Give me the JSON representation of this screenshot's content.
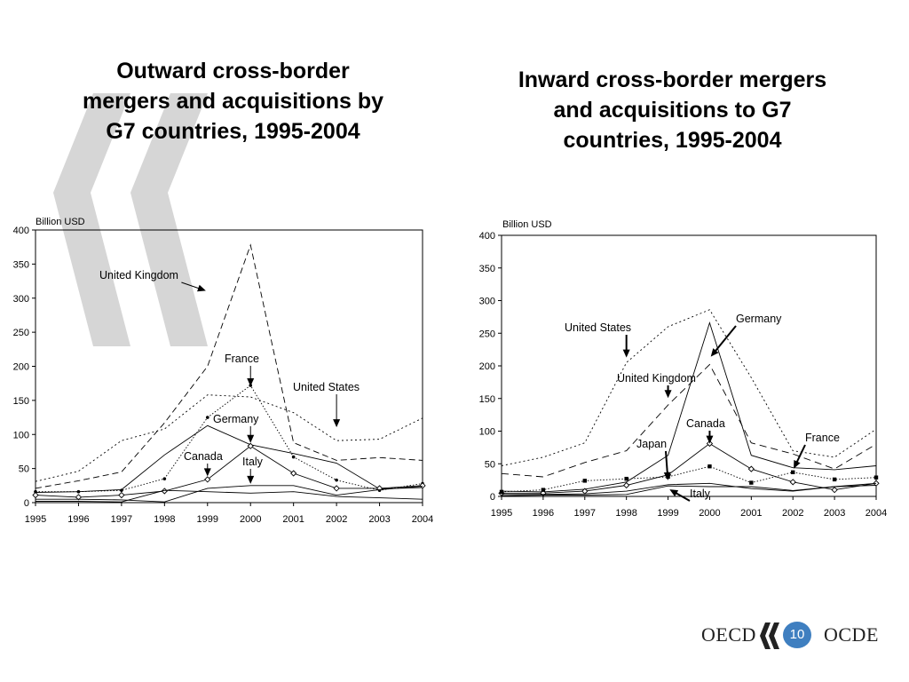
{
  "slide": {
    "page_number": "10",
    "brand_left": "OECD",
    "brand_right": "OCDE",
    "decoration_icon": "quote-chevron-icon",
    "colors": {
      "chevron": "#d4d4d4",
      "page_badge": "#3f7fc0",
      "lines": "#000000"
    }
  },
  "chart_data": [
    {
      "type": "line",
      "title_lines": [
        "Outward cross-border",
        "mergers and acquisitions by",
        "G7 countries, 1995-2004"
      ],
      "ylabel": "Billion USD",
      "xlabel": "",
      "x": [
        "1995",
        "1996",
        "1997",
        "1998",
        "1999",
        "2000",
        "2001",
        "2002",
        "2003",
        "2004"
      ],
      "ylim": [
        0,
        400
      ],
      "yticks": [
        0,
        50,
        100,
        150,
        200,
        250,
        300,
        350,
        400
      ],
      "legend": "none",
      "grid": false,
      "series": [
        {
          "name": "United Kingdom",
          "dash": "7,4",
          "marker": "none",
          "values": [
            21,
            32,
            45,
            117,
            200,
            378,
            88,
            62,
            66,
            62
          ]
        },
        {
          "name": "United States",
          "dash": "2,3",
          "marker": "none",
          "values": [
            31,
            46,
            91,
            108,
            158,
            155,
            132,
            91,
            93,
            124
          ]
        },
        {
          "name": "France",
          "dash": "1.5,2",
          "marker": "dot",
          "values": [
            16,
            16,
            18,
            35,
            125,
            172,
            67,
            33,
            18,
            28
          ]
        },
        {
          "name": "Germany",
          "dash": "",
          "marker": "none",
          "values": [
            15,
            16,
            19,
            70,
            113,
            85,
            72,
            58,
            20,
            22
          ]
        },
        {
          "name": "Canada",
          "dash": "",
          "marker": "diamond",
          "values": [
            11,
            8,
            11,
            17,
            34,
            83,
            43,
            21,
            21,
            25
          ]
        },
        {
          "name": "Italy",
          "dash": "",
          "marker": "none",
          "values": [
            5,
            5,
            4,
            1,
            21,
            25,
            25,
            11,
            19,
            24
          ]
        },
        {
          "name": "",
          "dash": "",
          "marker": "none",
          "values": [
            2,
            2,
            1,
            18,
            16,
            14,
            16,
            9,
            7,
            5
          ]
        }
      ],
      "annotations": [
        {
          "text": "United Kingdom",
          "target": {
            "series": "United Kingdom",
            "x": "1999",
            "y": 310
          }
        },
        {
          "text": "France",
          "target": {
            "series": "France",
            "x": "2000",
            "y": 168
          }
        },
        {
          "text": "United States",
          "target": {
            "series": "United States",
            "x": "2002",
            "y": 108
          }
        },
        {
          "text": "Germany",
          "target": {
            "series": "Germany",
            "x": "2000",
            "y": 85
          }
        },
        {
          "text": "Canada",
          "target": {
            "series": "Canada",
            "x": "1999",
            "y": 36
          }
        },
        {
          "text": "Italy",
          "target": {
            "series": "Italy",
            "x": "2000",
            "y": 25
          }
        }
      ]
    },
    {
      "type": "line",
      "title_lines": [
        "Inward cross-border mergers",
        "and acquisitions to G7",
        "countries, 1995-2004"
      ],
      "ylabel": "Billion USD",
      "xlabel": "",
      "x": [
        "1995",
        "1996",
        "1997",
        "1998",
        "1999",
        "2000",
        "2001",
        "2002",
        "2003",
        "2004"
      ],
      "ylim": [
        0,
        400
      ],
      "yticks": [
        0,
        50,
        100,
        150,
        200,
        250,
        300,
        350,
        400
      ],
      "legend": "none",
      "grid": false,
      "series": [
        {
          "name": "United States",
          "dash": "2,3",
          "marker": "none",
          "values": [
            47,
            60,
            82,
            205,
            260,
            286,
            182,
            70,
            60,
            103
          ]
        },
        {
          "name": "Germany",
          "dash": "",
          "marker": "none",
          "values": [
            8,
            7,
            11,
            22,
            63,
            266,
            63,
            44,
            41,
            47
          ]
        },
        {
          "name": "United Kingdom",
          "dash": "8,5",
          "marker": "none",
          "values": [
            35,
            30,
            52,
            70,
            140,
            202,
            82,
            65,
            42,
            80
          ]
        },
        {
          "name": "Canada",
          "dash": "",
          "marker": "diamond",
          "values": [
            5,
            5,
            8,
            17,
            33,
            81,
            42,
            22,
            10,
            20
          ]
        },
        {
          "name": "France",
          "dash": "1.5,2",
          "marker": "square",
          "values": [
            7,
            10,
            24,
            27,
            30,
            46,
            21,
            37,
            26,
            29
          ]
        },
        {
          "name": "Japan",
          "dash": "",
          "marker": "none",
          "values": [
            3,
            3,
            4,
            8,
            18,
            20,
            12,
            8,
            15,
            20
          ]
        },
        {
          "name": "Italy",
          "dash": "",
          "marker": "none",
          "values": [
            1,
            2,
            2,
            3,
            16,
            15,
            15,
            9,
            15,
            17
          ]
        }
      ],
      "annotations": [
        {
          "text": "Germany",
          "target": {
            "series": "Germany",
            "x": "2000",
            "y": 212
          }
        },
        {
          "text": "United States",
          "target": {
            "series": "United States",
            "x": "1998",
            "y": 210
          }
        },
        {
          "text": "United Kingdom",
          "target": {
            "series": "United Kingdom",
            "x": "1999",
            "y": 148
          }
        },
        {
          "text": "Canada",
          "target": {
            "series": "Canada",
            "x": "2000",
            "y": 78
          }
        },
        {
          "text": "France",
          "target": {
            "series": "France",
            "x": "2002",
            "y": 40
          }
        },
        {
          "text": "Japan",
          "target": {
            "series": "Japan",
            "x": "1999",
            "y": 22
          }
        },
        {
          "text": "Italy",
          "target": {
            "series": "Italy",
            "x": "1999",
            "y": 12
          }
        }
      ]
    }
  ]
}
